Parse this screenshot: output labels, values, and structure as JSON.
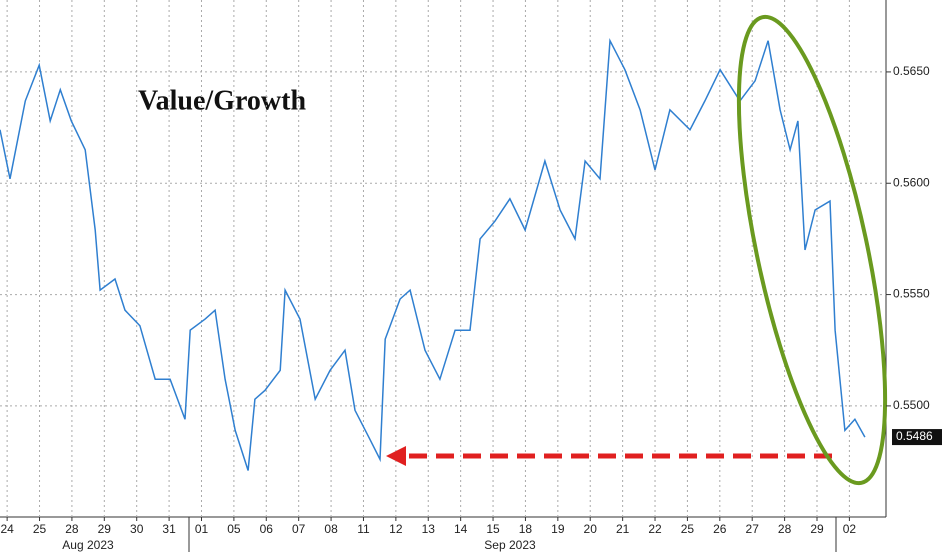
{
  "chart_data": {
    "type": "line",
    "title": "Value/Growth",
    "series": [
      {
        "name": "Value/Growth",
        "color": "#2f7fd0",
        "x": [
          -0.22,
          0.09,
          0.56,
          0.99,
          1.33,
          1.64,
          1.98,
          2.41,
          2.72,
          2.87,
          3.33,
          3.64,
          4.1,
          4.57,
          5.03,
          5.49,
          5.65,
          6.11,
          6.42,
          6.73,
          7.04,
          7.44,
          7.65,
          7.96,
          8.43,
          8.58,
          9.04,
          9.51,
          9.97,
          10.43,
          10.74,
          11.2,
          11.51,
          11.67,
          12.13,
          12.44,
          12.9,
          13.36,
          13.83,
          14.29,
          14.6,
          15.06,
          15.52,
          15.99,
          16.6,
          17.07,
          17.53,
          17.84,
          18.3,
          18.61,
          19.07,
          19.54,
          20.0,
          20.46,
          21.08,
          21.54,
          22.01,
          22.62,
          23.09,
          23.49,
          23.86,
          24.17,
          24.41,
          24.63,
          24.94,
          25.4,
          25.56,
          25.86,
          26.17,
          26.48
        ],
        "values": [
          0.5624,
          0.5602,
          0.5637,
          0.5653,
          0.5628,
          0.5642,
          0.5628,
          0.5615,
          0.5579,
          0.5552,
          0.5557,
          0.5543,
          0.5536,
          0.5512,
          0.5512,
          0.5494,
          0.5534,
          0.5539,
          0.5543,
          0.5512,
          0.5489,
          0.5471,
          0.5503,
          0.5507,
          0.5516,
          0.5552,
          0.5539,
          0.5503,
          0.5516,
          0.5525,
          0.5498,
          0.5485,
          0.5476,
          0.553,
          0.5548,
          0.5552,
          0.5525,
          0.5512,
          0.5534,
          0.5534,
          0.5575,
          0.5583,
          0.5593,
          0.5579,
          0.561,
          0.5588,
          0.5575,
          0.561,
          0.5602,
          0.5664,
          0.5651,
          0.5633,
          0.5606,
          0.5633,
          0.5624,
          0.5637,
          0.5651,
          0.5637,
          0.5646,
          0.5664,
          0.5633,
          0.5615,
          0.5628,
          0.557,
          0.5588,
          0.5592,
          0.5534,
          0.5489,
          0.5494,
          0.5486
        ]
      }
    ],
    "last_value": 0.5486,
    "xlim": [
      -0.22,
      27.13
    ],
    "xticks": [
      {
        "value": 0,
        "label": "24"
      },
      {
        "value": 1,
        "label": "25"
      },
      {
        "value": 2,
        "label": "28"
      },
      {
        "value": 3,
        "label": "29"
      },
      {
        "value": 4,
        "label": "30"
      },
      {
        "value": 5,
        "label": "31"
      },
      {
        "value": 6,
        "label": "01"
      },
      {
        "value": 7,
        "label": "05"
      },
      {
        "value": 8,
        "label": "06"
      },
      {
        "value": 9,
        "label": "07"
      },
      {
        "value": 10,
        "label": "08"
      },
      {
        "value": 11,
        "label": "11"
      },
      {
        "value": 12,
        "label": "12"
      },
      {
        "value": 13,
        "label": "13"
      },
      {
        "value": 14,
        "label": "14"
      },
      {
        "value": 15,
        "label": "15"
      },
      {
        "value": 16,
        "label": "18"
      },
      {
        "value": 17,
        "label": "19"
      },
      {
        "value": 18,
        "label": "20"
      },
      {
        "value": 19,
        "label": "21"
      },
      {
        "value": 20,
        "label": "22"
      },
      {
        "value": 21,
        "label": "25"
      },
      {
        "value": 22,
        "label": "26"
      },
      {
        "value": 23,
        "label": "27"
      },
      {
        "value": 24,
        "label": "28"
      },
      {
        "value": 25,
        "label": "29"
      },
      {
        "value": 26,
        "label": "02"
      }
    ],
    "month_labels": [
      "Aug 2023",
      "Sep 2023"
    ],
    "ylim": [
      0.54501,
      0.56823
    ],
    "yticks": [
      {
        "value": 0.55,
        "label": "0.5500"
      },
      {
        "value": 0.555,
        "label": "0.5550"
      },
      {
        "value": 0.56,
        "label": "0.5600"
      },
      {
        "value": 0.565,
        "label": "0.5650"
      }
    ],
    "grid": true
  }
}
